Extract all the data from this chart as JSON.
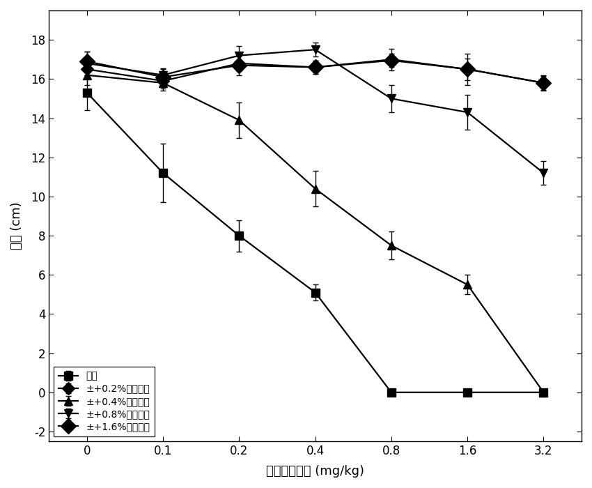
{
  "x_positions": [
    0,
    1,
    2,
    3,
    4,
    5,
    6
  ],
  "xticklabels": [
    "0",
    "0.1",
    "0.2",
    "0.4",
    "0.8",
    "1.6",
    "3.2"
  ],
  "series": [
    {
      "label": "农育",
      "y": [
        15.3,
        11.2,
        8.0,
        5.1,
        0.0,
        0.0,
        0.0
      ],
      "yerr": [
        0.9,
        1.5,
        0.8,
        0.4,
        0.15,
        0.15,
        0.15
      ],
      "marker": "s",
      "markersize": 8
    },
    {
      "label": "±+0.2%碳纳米管",
      "y": [
        16.5,
        15.9,
        16.8,
        16.6,
        17.0,
        16.5,
        15.8
      ],
      "yerr": [
        0.4,
        0.4,
        0.4,
        0.35,
        0.55,
        0.8,
        0.35
      ],
      "marker": "D",
      "markersize": 9
    },
    {
      "label": "±+0.4%碳纳米管",
      "y": [
        16.2,
        15.8,
        13.9,
        10.4,
        7.5,
        5.5,
        0.0
      ],
      "yerr": [
        0.5,
        0.4,
        0.9,
        0.9,
        0.7,
        0.5,
        0.15
      ],
      "marker": "^",
      "markersize": 9
    },
    {
      "label": "±+0.8%碳纳米管",
      "y": [
        16.8,
        16.2,
        17.2,
        17.5,
        15.0,
        14.3,
        11.2
      ],
      "yerr": [
        0.6,
        0.35,
        0.5,
        0.35,
        0.7,
        0.9,
        0.6
      ],
      "marker": "v",
      "markersize": 9
    },
    {
      "label": "±+1.6%碳纳米管",
      "y": [
        16.9,
        16.1,
        16.7,
        16.6,
        16.95,
        16.5,
        15.8
      ],
      "yerr": [
        0.5,
        0.4,
        0.5,
        0.35,
        0.35,
        0.55,
        0.4
      ],
      "marker": "D",
      "markersize": 11
    }
  ],
  "xlabel": "甲磺草胺浓度 (mg/kg)",
  "ylabel": "株高 (cm)",
  "ylim": [
    -2.5,
    19.5
  ],
  "yticks": [
    -2,
    0,
    2,
    4,
    6,
    8,
    10,
    12,
    14,
    16,
    18
  ],
  "background_color": "#ffffff",
  "legend_loc": "lower left",
  "figsize": [
    8.5,
    7.0
  ],
  "dpi": 100,
  "color": "#000000",
  "linewidth": 1.6,
  "elinewidth": 1.0,
  "capsize": 3,
  "capthick": 1.0
}
